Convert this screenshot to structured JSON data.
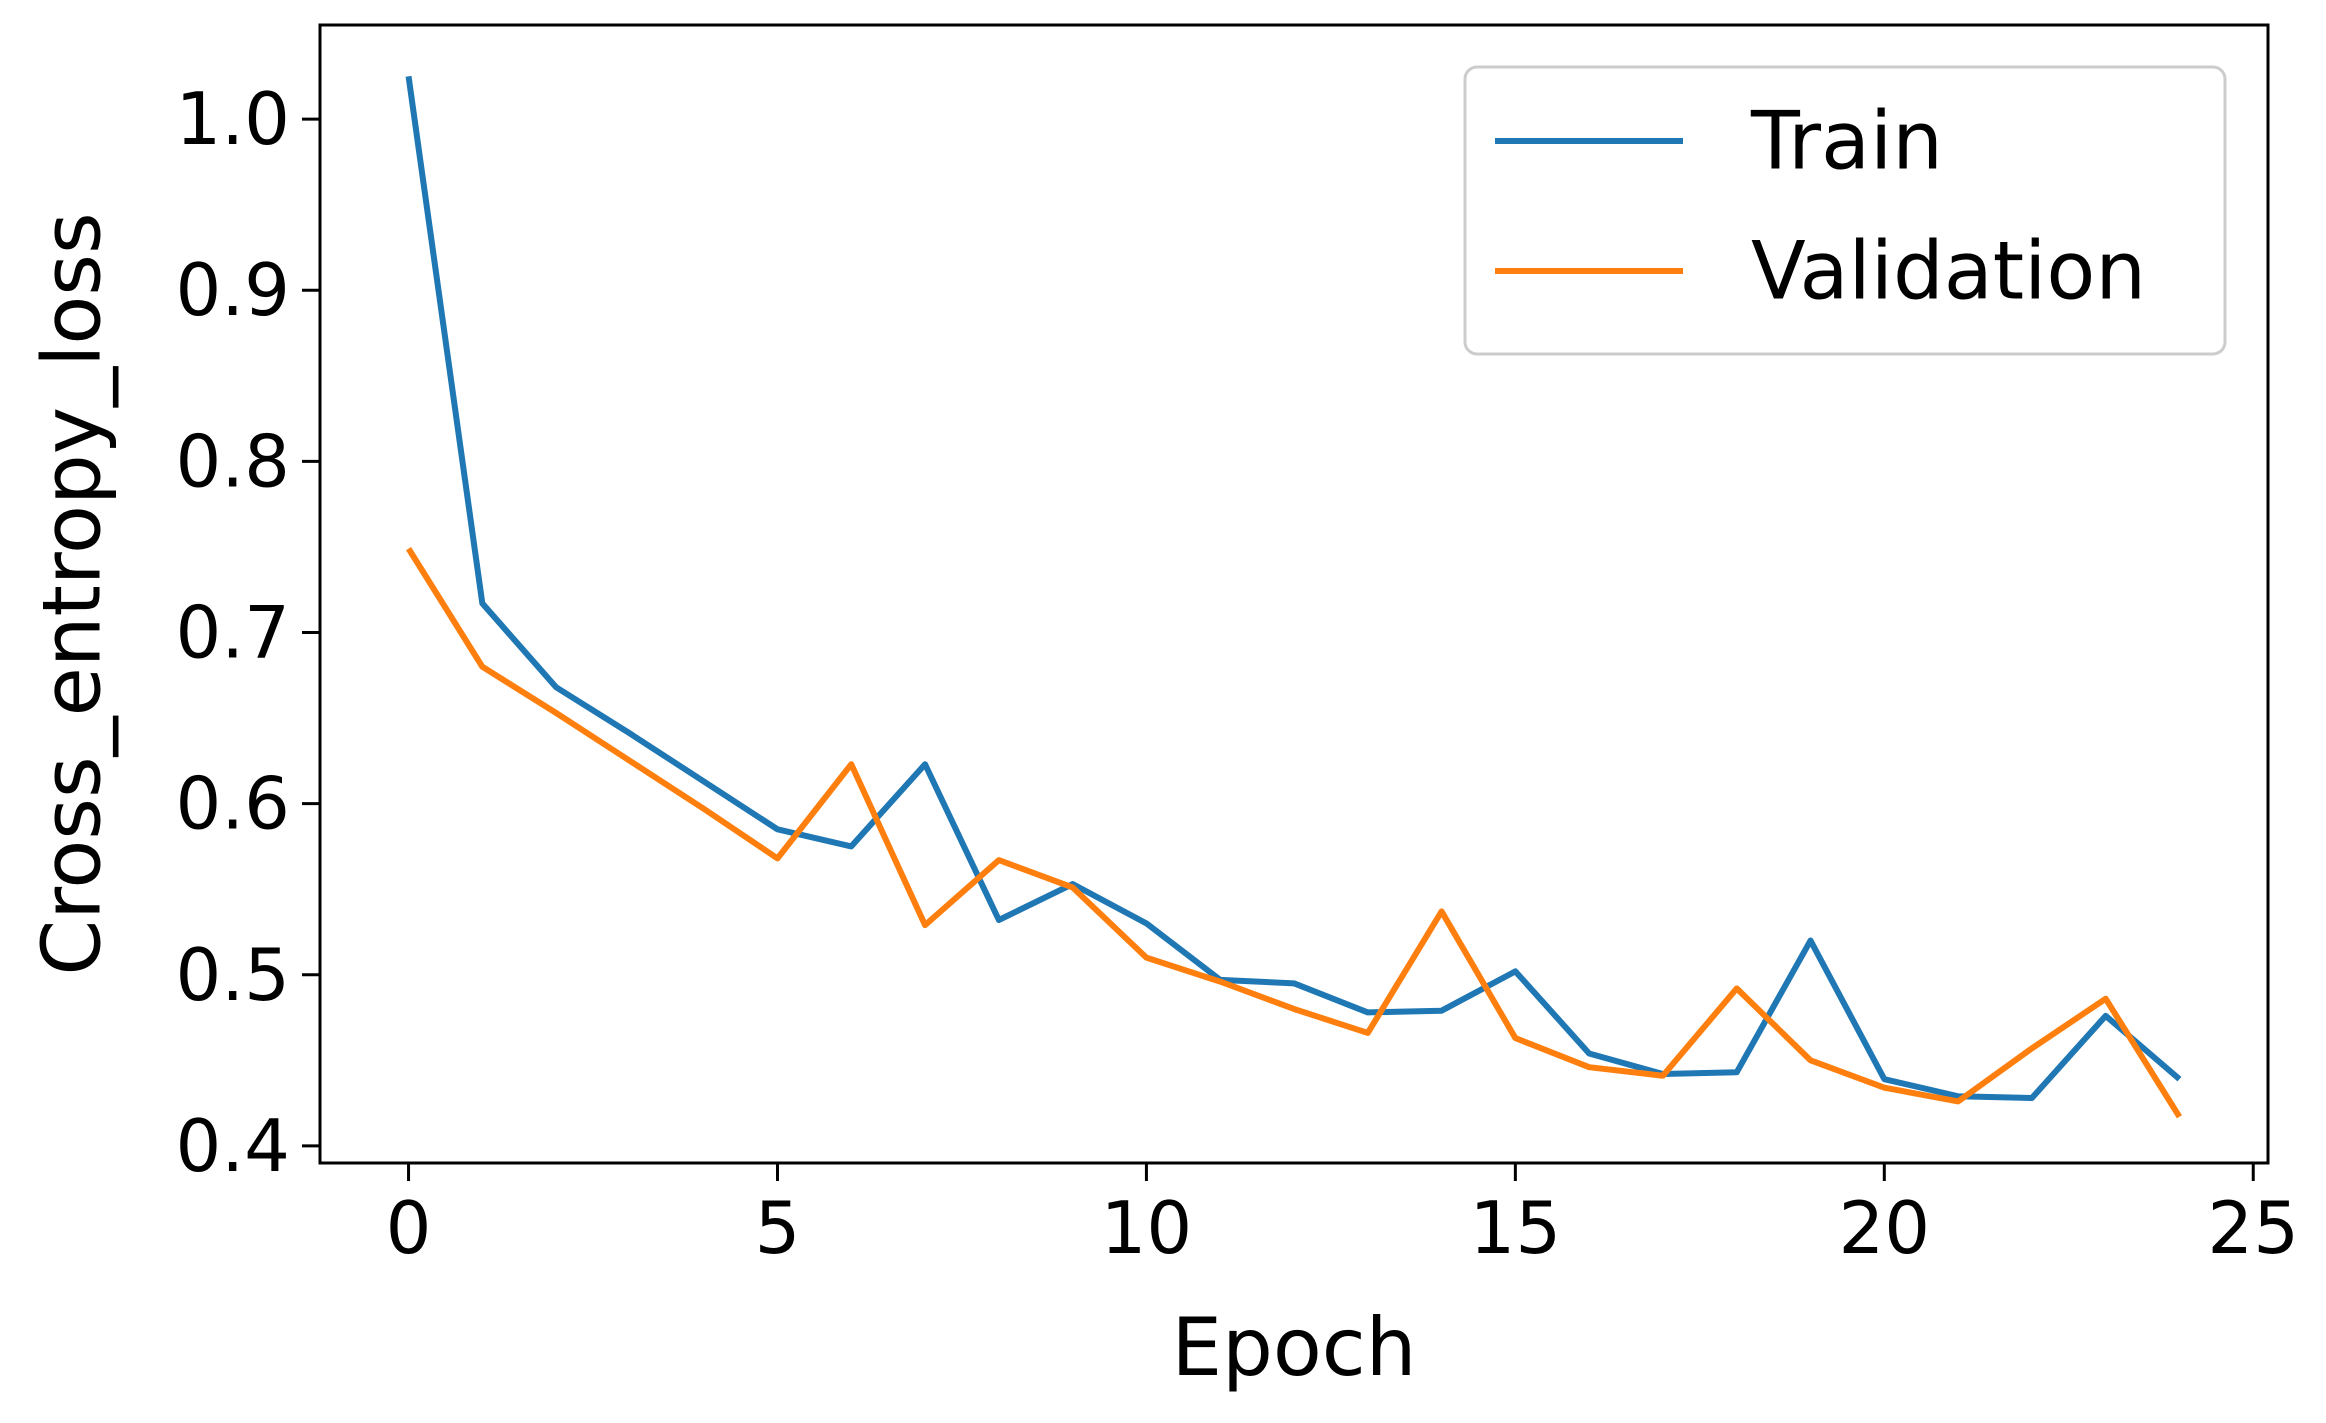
{
  "chart_data": {
    "type": "line",
    "title": "",
    "xlabel": "Epoch",
    "ylabel": "Cross_entropy_loss",
    "xlim": [
      -1.2,
      25.2
    ],
    "ylim": [
      0.39,
      1.055
    ],
    "xticks": [
      0,
      5,
      10,
      15,
      20,
      25
    ],
    "xtick_labels": [
      "0",
      "5",
      "10",
      "15",
      "20",
      "25"
    ],
    "yticks": [
      0.4,
      0.5,
      0.6,
      0.7,
      0.8,
      0.9,
      1.0
    ],
    "ytick_labels": [
      "0.4",
      "0.5",
      "0.6",
      "0.7",
      "0.8",
      "0.9",
      "1.0"
    ],
    "grid": false,
    "legend_position": "upper right",
    "x": [
      0,
      1,
      2,
      3,
      4,
      5,
      6,
      7,
      8,
      9,
      10,
      11,
      12,
      13,
      14,
      15,
      16,
      17,
      18,
      19,
      20,
      21,
      22,
      23,
      24
    ],
    "series": [
      {
        "name": "Train",
        "color": "#1f77b4",
        "values": [
          1.025,
          0.717,
          0.668,
          0.641,
          0.613,
          0.585,
          0.575,
          0.623,
          0.532,
          0.553,
          0.53,
          0.497,
          0.495,
          0.478,
          0.479,
          0.502,
          0.454,
          0.442,
          0.443,
          0.52,
          0.439,
          0.429,
          0.428,
          0.476,
          0.439
        ]
      },
      {
        "name": "Validation",
        "color": "#ff7f0e",
        "values": [
          0.749,
          0.68,
          0.653,
          0.625,
          0.597,
          0.568,
          0.623,
          0.529,
          0.567,
          0.551,
          0.51,
          0.496,
          0.48,
          0.466,
          0.537,
          0.463,
          0.446,
          0.441,
          0.492,
          0.45,
          0.434,
          0.426,
          0.457,
          0.486,
          0.417
        ]
      }
    ]
  }
}
